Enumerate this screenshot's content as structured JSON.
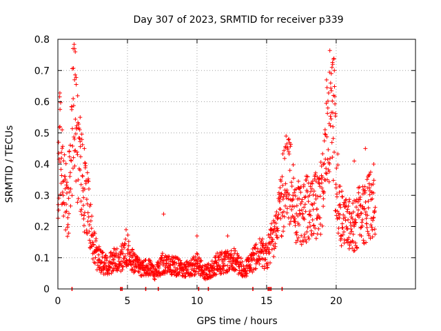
{
  "chart_data": {
    "type": "scatter",
    "title": "Day 307 of 2023, SRMTID for receiver p339",
    "xlabel": "GPS time / hours",
    "ylabel": "SRMTID / TECUs",
    "xlim": [
      0,
      25.7
    ],
    "ylim": [
      0,
      0.8
    ],
    "x_ticks": [
      0,
      5,
      10,
      15,
      20
    ],
    "x_tick_labels": [
      "0",
      "5",
      "10",
      "15",
      "20"
    ],
    "y_ticks": [
      0,
      0.1,
      0.2,
      0.3,
      0.4,
      0.5,
      0.6,
      0.7,
      0.8
    ],
    "y_tick_labels": [
      "0",
      "0.1",
      "0.2",
      "0.3",
      "0.4",
      "0.5",
      "0.6",
      "0.7",
      "0.8"
    ],
    "grid": true,
    "marker": "plus",
    "marker_color": "#ff0000",
    "series": [
      {
        "name": "SRMTID",
        "anchors": [
          [
            0.0,
            0.26
          ],
          [
            0.1,
            0.4
          ],
          [
            0.2,
            0.48
          ],
          [
            0.35,
            0.38
          ],
          [
            0.5,
            0.3
          ],
          [
            0.7,
            0.24
          ],
          [
            0.9,
            0.35
          ],
          [
            1.1,
            0.58
          ],
          [
            1.25,
            0.48
          ],
          [
            1.5,
            0.4
          ],
          [
            1.8,
            0.32
          ],
          [
            2.2,
            0.24
          ],
          [
            2.5,
            0.16
          ],
          [
            2.8,
            0.1
          ],
          [
            3.2,
            0.08
          ],
          [
            3.6,
            0.07
          ],
          [
            4.0,
            0.09
          ],
          [
            4.5,
            0.09
          ],
          [
            5.0,
            0.12
          ],
          [
            5.5,
            0.08
          ],
          [
            6.0,
            0.06
          ],
          [
            6.5,
            0.07
          ],
          [
            7.0,
            0.05
          ],
          [
            7.5,
            0.08
          ],
          [
            8.0,
            0.07
          ],
          [
            8.5,
            0.07
          ],
          [
            9.0,
            0.06
          ],
          [
            9.5,
            0.06
          ],
          [
            10.0,
            0.08
          ],
          [
            10.5,
            0.05
          ],
          [
            11.0,
            0.06
          ],
          [
            11.5,
            0.08
          ],
          [
            12.0,
            0.08
          ],
          [
            12.5,
            0.1
          ],
          [
            13.0,
            0.07
          ],
          [
            13.5,
            0.06
          ],
          [
            14.0,
            0.09
          ],
          [
            14.5,
            0.11
          ],
          [
            15.0,
            0.1
          ],
          [
            15.3,
            0.14
          ],
          [
            15.6,
            0.18
          ],
          [
            16.0,
            0.25
          ],
          [
            16.3,
            0.33
          ],
          [
            16.6,
            0.35
          ],
          [
            17.0,
            0.25
          ],
          [
            17.5,
            0.22
          ],
          [
            18.0,
            0.26
          ],
          [
            18.5,
            0.25
          ],
          [
            19.0,
            0.3
          ],
          [
            19.3,
            0.45
          ],
          [
            19.6,
            0.6
          ],
          [
            19.8,
            0.56
          ],
          [
            20.0,
            0.32
          ],
          [
            20.4,
            0.22
          ],
          [
            20.8,
            0.2
          ],
          [
            21.2,
            0.19
          ],
          [
            21.6,
            0.22
          ],
          [
            22.0,
            0.23
          ],
          [
            22.4,
            0.26
          ],
          [
            22.8,
            0.27
          ]
        ],
        "peaks": [
          [
            1.2,
            0.77
          ],
          [
            1.25,
            0.76
          ],
          [
            1.2,
            0.67
          ],
          [
            1.1,
            0.61
          ],
          [
            0.3,
            0.51
          ],
          [
            0.15,
            0.52
          ],
          [
            1.6,
            0.55
          ],
          [
            1.9,
            0.45
          ],
          [
            0.05,
            0.47
          ],
          [
            19.75,
            0.72
          ],
          [
            19.7,
            0.71
          ],
          [
            19.65,
            0.69
          ],
          [
            19.6,
            0.66
          ],
          [
            19.8,
            0.62
          ],
          [
            19.4,
            0.58
          ],
          [
            19.5,
            0.53
          ],
          [
            16.4,
            0.49
          ],
          [
            16.6,
            0.48
          ],
          [
            22.1,
            0.45
          ],
          [
            22.7,
            0.4
          ],
          [
            21.3,
            0.41
          ],
          [
            7.6,
            0.24
          ],
          [
            10.0,
            0.17
          ],
          [
            12.2,
            0.17
          ],
          [
            4.9,
            0.19
          ],
          [
            14.7,
            0.16
          ],
          [
            16.0,
            0.35
          ]
        ],
        "zero_marks": [
          1.0,
          4.5,
          4.6,
          6.3,
          7.2,
          10.1,
          10.8,
          14.0,
          15.1,
          15.2,
          15.3,
          16.1
        ]
      }
    ]
  }
}
